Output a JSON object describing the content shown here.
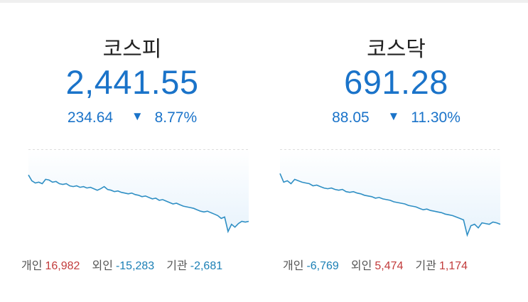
{
  "colors": {
    "up": "#c23b3b",
    "down": "#1a7fb5",
    "value": "#1a73c9",
    "line": "#2f8fc4",
    "fill": "#e8f3fc"
  },
  "markets": [
    {
      "name": "코스피",
      "value": "2,441.55",
      "change": "234.64",
      "direction_icon": "down-triangle-icon",
      "direction_glyph": "▼",
      "change_pct": "8.77%",
      "investors": [
        {
          "label": "개인",
          "value": "16,982",
          "sign": "pos"
        },
        {
          "label": "외인",
          "value": "-15,283",
          "sign": "neg"
        },
        {
          "label": "기관",
          "value": "-2,681",
          "sign": "neg"
        }
      ],
      "intraday": [
        0.12,
        0.2,
        0.23,
        0.22,
        0.24,
        0.18,
        0.19,
        0.22,
        0.21,
        0.24,
        0.25,
        0.24,
        0.27,
        0.28,
        0.27,
        0.29,
        0.28,
        0.3,
        0.29,
        0.31,
        0.33,
        0.31,
        0.28,
        0.32,
        0.33,
        0.35,
        0.34,
        0.36,
        0.37,
        0.38,
        0.37,
        0.39,
        0.4,
        0.42,
        0.41,
        0.43,
        0.45,
        0.44,
        0.47,
        0.46,
        0.48,
        0.5,
        0.52,
        0.51,
        0.53,
        0.55,
        0.56,
        0.57,
        0.58,
        0.6,
        0.62,
        0.63,
        0.62,
        0.64,
        0.66,
        0.68,
        0.72,
        0.7,
        0.9,
        0.8,
        0.84,
        0.79,
        0.76,
        0.77,
        0.76
      ]
    },
    {
      "name": "코스닥",
      "value": "691.28",
      "change": "88.05",
      "direction_icon": "down-triangle-icon",
      "direction_glyph": "▼",
      "change_pct": "11.30%",
      "investors": [
        {
          "label": "개인",
          "value": "-6,769",
          "sign": "neg"
        },
        {
          "label": "외인",
          "value": "5,474",
          "sign": "pos"
        },
        {
          "label": "기관",
          "value": "1,174",
          "sign": "pos"
        }
      ],
      "intraday": [
        0.1,
        0.22,
        0.2,
        0.24,
        0.18,
        0.2,
        0.22,
        0.23,
        0.24,
        0.27,
        0.26,
        0.28,
        0.3,
        0.31,
        0.3,
        0.32,
        0.33,
        0.32,
        0.35,
        0.36,
        0.35,
        0.37,
        0.38,
        0.4,
        0.41,
        0.42,
        0.44,
        0.43,
        0.45,
        0.46,
        0.47,
        0.49,
        0.5,
        0.51,
        0.52,
        0.54,
        0.55,
        0.56,
        0.58,
        0.6,
        0.59,
        0.61,
        0.62,
        0.63,
        0.64,
        0.66,
        0.67,
        0.68,
        0.7,
        0.72,
        0.74,
        0.95,
        0.82,
        0.8,
        0.85,
        0.78,
        0.79,
        0.8,
        0.77,
        0.78,
        0.8
      ]
    }
  ]
}
